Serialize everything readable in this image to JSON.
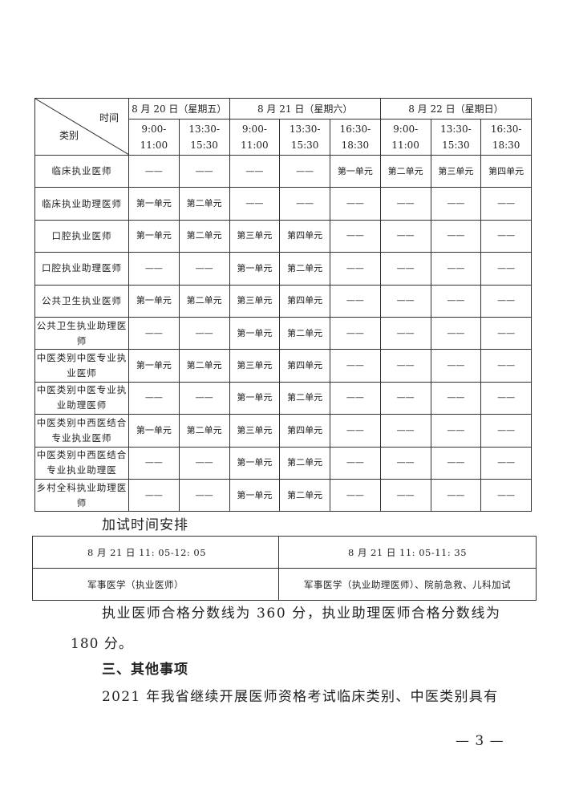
{
  "schedule": {
    "header": {
      "time_label": "时间",
      "category_label": "类别",
      "dates": [
        "8 月 20 日（星期五）",
        "8 月 21 日（星期六）",
        "8 月 22 日（星期日）"
      ],
      "slots": [
        "9:00-\n11:00",
        "13:30-\n15:30",
        "9:00-\n11:00",
        "13:30-\n15:30",
        "16:30-\n18:30",
        "9:00-\n11:00",
        "13:30-\n15:30",
        "16:30-\n18:30"
      ]
    },
    "rows": [
      {
        "category": "临床执业医师",
        "cells": [
          "——",
          "——",
          "——",
          "——",
          "第一单元",
          "第二单元",
          "第三单元",
          "第四单元"
        ]
      },
      {
        "category": "临床执业助理医师",
        "cells": [
          "第一单元",
          "第二单元",
          "——",
          "——",
          "——",
          "——",
          "——",
          "——"
        ]
      },
      {
        "category": "口腔执业医师",
        "cells": [
          "第一单元",
          "第二单元",
          "第三单元",
          "第四单元",
          "——",
          "——",
          "——",
          "——"
        ]
      },
      {
        "category": "口腔执业助理医师",
        "cells": [
          "——",
          "——",
          "第一单元",
          "第二单元",
          "——",
          "——",
          "——",
          "——"
        ]
      },
      {
        "category": "公共卫生执业医师",
        "cells": [
          "第一单元",
          "第二单元",
          "第三单元",
          "第四单元",
          "——",
          "——",
          "——",
          "——"
        ]
      },
      {
        "category": "公共卫生执业助理医师",
        "cells": [
          "——",
          "——",
          "第一单元",
          "第二单元",
          "——",
          "——",
          "——",
          "——"
        ]
      },
      {
        "category": "中医类别中医专业执业医师",
        "cells": [
          "第一单元",
          "第二单元",
          "第三单元",
          "第四单元",
          "——",
          "——",
          "——",
          "——"
        ]
      },
      {
        "category": "中医类别中医专业执业助理医师",
        "cells": [
          "——",
          "——",
          "第一单元",
          "第二单元",
          "——",
          "——",
          "——",
          "——"
        ]
      },
      {
        "category": "中医类别中西医结合专业执业医师",
        "cells": [
          "第一单元",
          "第二单元",
          "第三单元",
          "第四单元",
          "——",
          "——",
          "——",
          "——"
        ]
      },
      {
        "category": "中医类别中西医结合专业执业助理医",
        "cells": [
          "——",
          "——",
          "第一单元",
          "第二单元",
          "——",
          "——",
          "——",
          "——"
        ]
      },
      {
        "category": "乡村全科执业助理医师",
        "cells": [
          "——",
          "——",
          "第一单元",
          "第二单元",
          "——",
          "——",
          "——",
          "——"
        ]
      }
    ]
  },
  "extra": {
    "title": "加试时间安排",
    "times": [
      "8 月 21 日 11: 05-12: 05",
      "8 月 21 日 11: 05-11: 35"
    ],
    "subjects": [
      "军事医学（执业医师）",
      "军事医学（执业助理医师）、院前急救、儿科加试"
    ]
  },
  "body": {
    "line1": "执业医师合格分数线为 360 分，执业助理医师合格分数线为",
    "line2": "180 分。",
    "heading": "三、其他事项",
    "line3": "2021 年我省继续开展医师资格考试临床类别、中医类别具有"
  },
  "page_number": "— 3 —"
}
